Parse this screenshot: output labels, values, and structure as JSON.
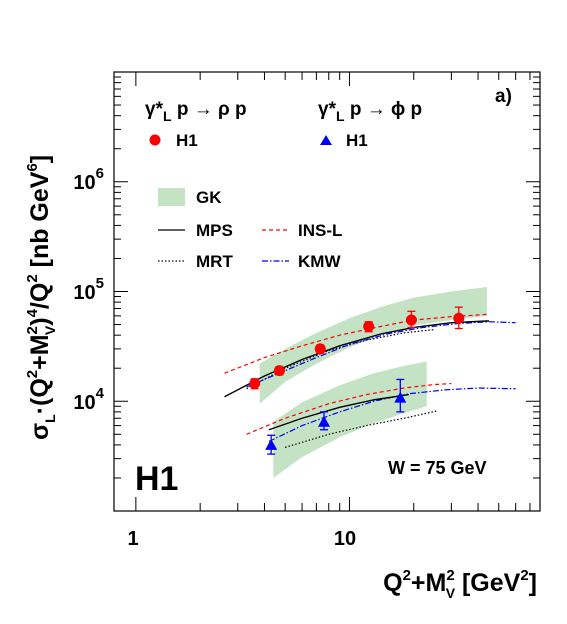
{
  "chart_data": {
    "type": "scatter",
    "panel_label": "a)",
    "experiment_label": "H1",
    "energy_label": "W = 75 GeV",
    "xlabel": {
      "main": "Q",
      "sup1": "2",
      "plus": "+M",
      "sup2": "2",
      "sub": "V",
      "unit_open": " [GeV",
      "sup3": "2",
      "unit_close": "]"
    },
    "ylabel": {
      "s": "σ",
      "s_sub": "L",
      "dot": "·(Q",
      "sup1": "2",
      "plus": "+M",
      "sup2": "2",
      "m_sub": "V",
      "close": ")",
      "sup3": "4",
      "div": "/Q",
      "sup4": "2",
      "unit_open": " [nb GeV",
      "sup5": "6",
      "unit_close": "]"
    },
    "x_scale": "log",
    "y_scale": "log",
    "xlim": [
      0.79,
      78
    ],
    "ylim": [
      1000,
      10000000
    ],
    "x_tick_labels": [
      "1",
      "10"
    ],
    "y_tick_labels": [
      {
        "base": "10",
        "exp": "4"
      },
      {
        "base": "10",
        "exp": "5"
      },
      {
        "base": "10",
        "exp": "6"
      }
    ],
    "reactions": [
      {
        "gamma": "γ",
        "star": "*",
        "L": "L",
        "rest": " p → ρ p"
      },
      {
        "gamma": "γ",
        "star": "*",
        "L": "L",
        "rest": " p → ϕ p"
      }
    ],
    "legend": {
      "rho_data": "H1",
      "phi_data": "H1",
      "gk": "GK",
      "mps": "MPS",
      "mrt": "MRT",
      "insl": "INS-L",
      "kmw": "KMW"
    },
    "colors": {
      "rho_data": "#ff0000",
      "phi_data": "#0000ff",
      "gk_band": "#c4e3c4",
      "mps": "#000000",
      "mrt": "#000000",
      "insl": "#ff0000",
      "kmw": "#0000ff"
    },
    "series": [
      {
        "name": "H1",
        "process": "rho",
        "marker": "circle",
        "x": [
          3.6,
          4.7,
          7.3,
          12.3,
          19.5,
          32.5
        ],
        "y": [
          14500,
          19000,
          30000,
          48000,
          55000,
          57000
        ],
        "err_lo": [
          1500,
          1600,
          2500,
          5000,
          8000,
          11000
        ],
        "err_hi": [
          1500,
          1600,
          2500,
          5000,
          11000,
          15000
        ]
      },
      {
        "name": "H1",
        "process": "phi",
        "marker": "triangle",
        "x": [
          4.3,
          7.6,
          17.3
        ],
        "y": [
          4000,
          6500,
          10800
        ],
        "err_lo": [
          700,
          1000,
          2800
        ],
        "err_hi": [
          900,
          1500,
          5000
        ]
      }
    ],
    "curves": {
      "gk_rho_band": {
        "x": [
          3.8,
          5.0,
          7.0,
          10.0,
          14.0,
          20.0,
          30.0,
          44.0
        ],
        "lo": [
          9500,
          15000,
          22000,
          31000,
          40000,
          49000,
          55000,
          60000
        ],
        "hi": [
          22000,
          30000,
          42000,
          57000,
          72000,
          88000,
          100000,
          110000
        ]
      },
      "gk_phi_band": {
        "x": [
          4.4,
          6.0,
          9.0,
          13.0,
          18.0,
          23.0
        ],
        "lo": [
          2000,
          3100,
          4700,
          6300,
          7800,
          9000
        ],
        "hi": [
          6500,
          9800,
          14000,
          18000,
          21000,
          23000
        ]
      },
      "mps_rho": {
        "x": [
          2.6,
          4.0,
          6.0,
          9.0,
          14.0,
          20.0,
          30.0,
          45.0
        ],
        "y": [
          11000,
          17000,
          24000,
          32000,
          41000,
          47000,
          52000,
          54000
        ]
      },
      "mps_phi": {
        "x": [
          4.2,
          6.0,
          9.0,
          13.0,
          19.0
        ],
        "y": [
          5500,
          7000,
          8800,
          10300,
          11500
        ]
      },
      "mrt_rho": {
        "x": [
          3.3,
          5.0,
          8.0,
          12.0,
          18.0,
          25.0
        ],
        "y": [
          13000,
          20000,
          29000,
          36000,
          42000,
          45000
        ]
      },
      "mrt_phi": {
        "x": [
          5.0,
          8.0,
          12.0,
          18.0,
          26.0
        ],
        "y": [
          3800,
          5000,
          6000,
          7000,
          8200
        ]
      },
      "insl_rho": {
        "x": [
          2.6,
          4.0,
          6.0,
          9.0,
          14.0,
          20.0,
          30.0,
          45.0
        ],
        "y": [
          18000,
          25000,
          32000,
          40000,
          48000,
          55000,
          59000,
          62000
        ]
      },
      "insl_phi": {
        "x": [
          3.3,
          5.0,
          8.0,
          12.0,
          18.0,
          25.0,
          30.0
        ],
        "y": [
          5000,
          7000,
          9500,
          11500,
          13200,
          14200,
          14500
        ]
      },
      "kmw_rho": {
        "x": [
          3.3,
          5.0,
          7.0,
          10.0,
          15.0,
          22.0,
          32.0,
          45.0,
          60.0
        ],
        "y": [
          13500,
          19000,
          25000,
          33000,
          41000,
          47000,
          51000,
          53000,
          52000
        ]
      },
      "kmw_phi": {
        "x": [
          4.2,
          6.0,
          9.0,
          13.0,
          19.0,
          28.0,
          40.0,
          60.0
        ],
        "y": [
          4300,
          6000,
          8000,
          10000,
          11700,
          12700,
          13200,
          13000
        ]
      }
    }
  }
}
